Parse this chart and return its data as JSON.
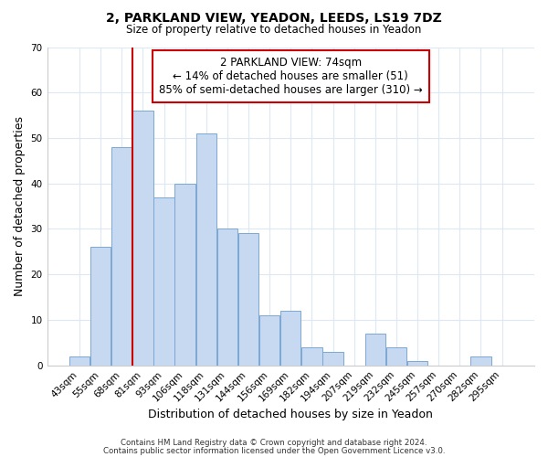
{
  "title": "2, PARKLAND VIEW, YEADON, LEEDS, LS19 7DZ",
  "subtitle": "Size of property relative to detached houses in Yeadon",
  "xlabel": "Distribution of detached houses by size in Yeadon",
  "ylabel": "Number of detached properties",
  "bar_labels": [
    "43sqm",
    "55sqm",
    "68sqm",
    "81sqm",
    "93sqm",
    "106sqm",
    "118sqm",
    "131sqm",
    "144sqm",
    "156sqm",
    "169sqm",
    "182sqm",
    "194sqm",
    "207sqm",
    "219sqm",
    "232sqm",
    "245sqm",
    "257sqm",
    "270sqm",
    "282sqm",
    "295sqm"
  ],
  "bar_values": [
    2,
    26,
    48,
    56,
    37,
    40,
    51,
    30,
    29,
    11,
    12,
    4,
    3,
    0,
    7,
    4,
    1,
    0,
    0,
    2,
    0
  ],
  "bar_color": "#c6d9f0",
  "bar_edge_color": "#7ba7d4",
  "ylim": [
    0,
    70
  ],
  "yticks": [
    0,
    10,
    20,
    30,
    40,
    50,
    60,
    70
  ],
  "vline_color": "#cc0000",
  "annotation_title": "2 PARKLAND VIEW: 74sqm",
  "annotation_line1": "← 14% of detached houses are smaller (51)",
  "annotation_line2": "85% of semi-detached houses are larger (310) →",
  "annotation_box_color": "#ffffff",
  "annotation_box_edge": "#cc0000",
  "footer1": "Contains HM Land Registry data © Crown copyright and database right 2024.",
  "footer2": "Contains public sector information licensed under the Open Government Licence v3.0.",
  "background_color": "#ffffff",
  "grid_color": "#dce9f5"
}
